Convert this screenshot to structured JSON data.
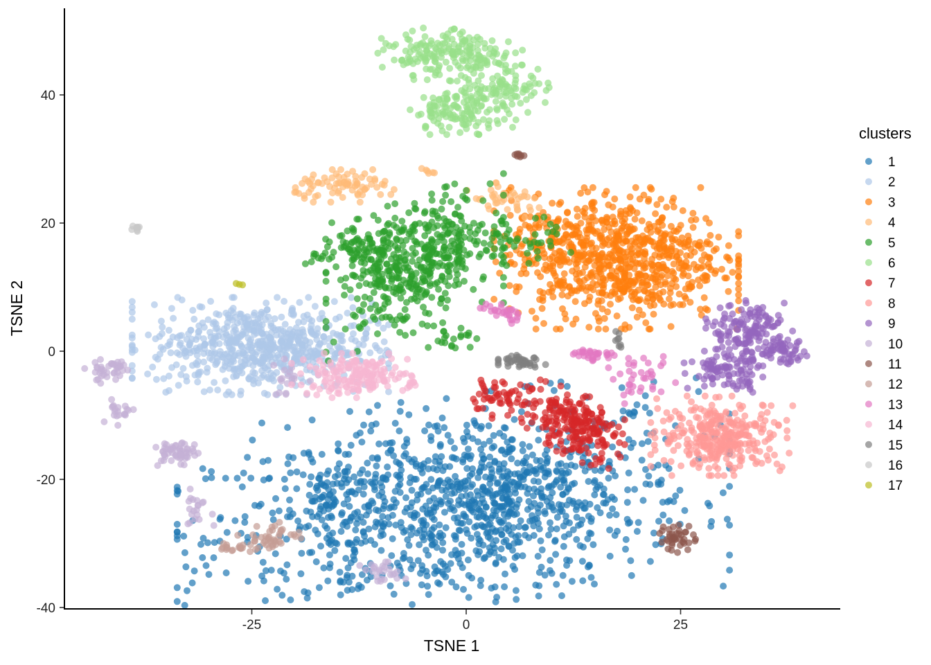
{
  "chart_data": {
    "type": "scatter",
    "xlabel": "TSNE 1",
    "ylabel": "TSNE 2",
    "xlim": [
      -47,
      44
    ],
    "ylim": [
      -40,
      53
    ],
    "xticks": [
      -25,
      0,
      25
    ],
    "yticks": [
      -40,
      -20,
      0,
      20,
      40
    ],
    "legend": {
      "title": "clusters",
      "position": "right"
    },
    "series": [
      {
        "name": "1",
        "color": "#1F77B4",
        "clusters": [
          [
            -1.5,
            -24.5,
            14,
            8,
            1100,
            0.3
          ],
          [
            6,
            -23,
            3,
            4,
            120,
            0.0
          ],
          [
            -16,
            -23,
            2,
            3,
            60,
            0.0
          ]
        ]
      },
      {
        "name": "2",
        "color": "#AEC7E8",
        "clusters": [
          [
            -24,
            0.8,
            6.5,
            3.3,
            650,
            0.0
          ]
        ]
      },
      {
        "name": "3",
        "color": "#FF7F0E",
        "clusters": [
          [
            17.5,
            14.5,
            6.2,
            4.8,
            800,
            0.0
          ],
          [
            9.5,
            18,
            2,
            1.6,
            40,
            0.0
          ]
        ]
      },
      {
        "name": "4",
        "color": "#FFBB78",
        "clusters": [
          [
            -13.5,
            25.8,
            3.2,
            1.1,
            80,
            0.0
          ],
          [
            4.5,
            23.5,
            2.5,
            1.2,
            40,
            -0.3
          ],
          [
            -4.3,
            27.7,
            0.7,
            0.4,
            6,
            0.0
          ]
        ]
      },
      {
        "name": "5",
        "color": "#2CA02C",
        "clusters": [
          [
            -6,
            13.5,
            4.5,
            5,
            450,
            0.4
          ],
          [
            -13,
            16,
            2.5,
            2,
            80,
            0.0
          ],
          [
            3,
            17.5,
            4,
            1.8,
            70,
            0.0
          ],
          [
            -1.5,
            2,
            1.5,
            0.8,
            20,
            0.0
          ]
        ]
      },
      {
        "name": "6",
        "color": "#98DF8A",
        "clusters": [
          [
            -3.5,
            46.3,
            3,
            1.8,
            130,
            0.0
          ],
          [
            1.5,
            46.5,
            2.2,
            1.3,
            60,
            0.0
          ],
          [
            -0.5,
            37.5,
            2.8,
            1.6,
            130,
            0.0
          ],
          [
            4.5,
            41.2,
            2.5,
            1.8,
            90,
            0.0
          ]
        ]
      },
      {
        "name": "7",
        "color": "#D62728",
        "clusters": [
          [
            12.5,
            -11.5,
            2.6,
            2.6,
            220,
            -0.4
          ],
          [
            4,
            -7.5,
            2.3,
            1.3,
            60,
            0.0
          ]
        ]
      },
      {
        "name": "8",
        "color": "#FF9896",
        "clusters": [
          [
            29.8,
            -13.2,
            3.6,
            2.7,
            320,
            0.0
          ]
        ]
      },
      {
        "name": "9",
        "color": "#9467BD",
        "clusters": [
          [
            33,
            3.3,
            2.2,
            2,
            140,
            0.0
          ],
          [
            30,
            -2.8,
            2,
            1.5,
            80,
            0.0
          ],
          [
            37,
            0,
            1.5,
            1,
            50,
            0.0
          ],
          [
            32.5,
            -5,
            0.8,
            1.5,
            25,
            0.0
          ]
        ]
      },
      {
        "name": "10",
        "color": "#C5B0D5",
        "clusters": [
          [
            -41.5,
            -3,
            1.3,
            1,
            40,
            0.0
          ],
          [
            -40.5,
            -9.3,
            0.8,
            1,
            20,
            0.0
          ],
          [
            -34,
            -16,
            1.2,
            1,
            55,
            0.0
          ],
          [
            -31.5,
            -24.5,
            0.9,
            1.3,
            20,
            0.0
          ],
          [
            -9.5,
            -34.5,
            1.3,
            0.7,
            25,
            0.0
          ],
          [
            -20.5,
            -4.5,
            1.5,
            1.5,
            20,
            0.0
          ]
        ]
      },
      {
        "name": "11",
        "color": "#8C564B",
        "clusters": [
          [
            24.5,
            -29,
            1,
            1.1,
            40,
            0.0
          ],
          [
            6.3,
            30.6,
            0.3,
            0.2,
            8,
            0.0
          ]
        ]
      },
      {
        "name": "12",
        "color": "#C49C94",
        "clusters": [
          [
            -22.5,
            -29,
            1.8,
            1,
            40,
            0.0
          ],
          [
            -26,
            -30.5,
            1.4,
            0.4,
            20,
            0.0
          ]
        ]
      },
      {
        "name": "13",
        "color": "#E377C2",
        "clusters": [
          [
            14.5,
            -0.5,
            1.5,
            0.5,
            30,
            0.0
          ],
          [
            20.5,
            -4.5,
            1.7,
            1.6,
            35,
            0.0
          ],
          [
            5.5,
            5.7,
            0.6,
            0.6,
            15,
            0.0
          ],
          [
            3.3,
            6.2,
            0.9,
            0.5,
            12,
            0.0
          ]
        ]
      },
      {
        "name": "14",
        "color": "#F7B6D2",
        "clusters": [
          [
            -13,
            -3.8,
            3.2,
            1.5,
            170,
            0.0
          ],
          [
            -6.3,
            -5,
            0.5,
            0.3,
            6,
            0.0
          ]
        ]
      },
      {
        "name": "15",
        "color": "#7F7F7F",
        "clusters": [
          [
            6.5,
            -1.5,
            1.2,
            0.5,
            40,
            0.0
          ],
          [
            17.7,
            2.2,
            0.3,
            0.8,
            8,
            0.0
          ]
        ]
      },
      {
        "name": "16",
        "color": "#C7C7C7",
        "clusters": [
          [
            -38.5,
            19.3,
            0.4,
            0.3,
            8,
            0.0
          ]
        ]
      },
      {
        "name": "17",
        "color": "#BCBD22",
        "clusters": [
          [
            -26.5,
            10.4,
            0.2,
            0.2,
            3,
            0.0
          ]
        ]
      }
    ]
  }
}
